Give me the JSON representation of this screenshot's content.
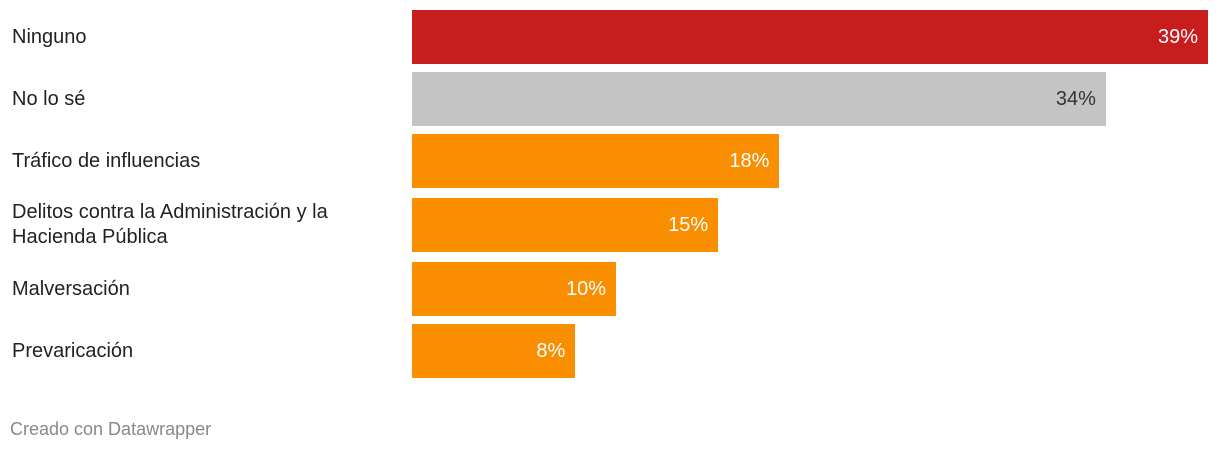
{
  "chart_data": {
    "type": "bar",
    "orientation": "horizontal",
    "categories": [
      "Ninguno",
      "No lo sé",
      "Tráfico de influencias",
      "Delitos contra la Administración y la Hacienda Pública",
      "Malversación",
      "Prevaricación"
    ],
    "values": [
      39,
      34,
      18,
      15,
      10,
      8
    ],
    "value_labels": [
      "39%",
      "34%",
      "18%",
      "15%",
      "10%",
      "8%"
    ],
    "colors": [
      "#c71e1d",
      "#c4c4c4",
      "#f98f00",
      "#f98f00",
      "#f98f00",
      "#f98f00"
    ],
    "label_colors": [
      "#ffffff",
      "#333333",
      "#ffffff",
      "#ffffff",
      "#ffffff",
      "#ffffff"
    ]
  },
  "footer": "Creado con Datawrapper"
}
